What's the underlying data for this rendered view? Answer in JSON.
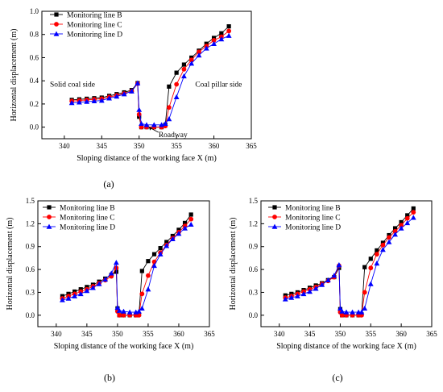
{
  "chart_data": [
    {
      "type": "line",
      "panel_label": "(a)",
      "xlabel": "Sloping distance of the working face X (m)",
      "ylabel": "Horizontal displacement (m)",
      "xlim": [
        337,
        365
      ],
      "ylim": [
        -0.1,
        1.0
      ],
      "xticks": [
        340,
        345,
        350,
        355,
        360,
        365
      ],
      "yticks": [
        0.0,
        0.2,
        0.4,
        0.6,
        0.8,
        1.0
      ],
      "ytick_labels": [
        "0.0",
        "0.2",
        "0.4",
        "0.6",
        "0.8",
        "1.0"
      ],
      "legend_position": "top-left",
      "annotations": [
        {
          "text": "Solid coal side"
        },
        {
          "text": "Coal pillar side"
        },
        {
          "text": "Roadway"
        }
      ],
      "x": [
        341,
        342,
        343,
        344,
        345,
        346,
        347,
        348,
        349,
        349.8,
        350,
        350.3,
        351,
        352,
        353,
        353.5,
        354,
        355,
        356,
        357,
        358,
        359,
        360,
        361,
        362
      ],
      "series": [
        {
          "name": "Monitoring line B",
          "marker": "square",
          "color": "#000000",
          "values": [
            0.235,
            0.24,
            0.245,
            0.25,
            0.255,
            0.27,
            0.285,
            0.3,
            0.32,
            0.38,
            0.09,
            0.0,
            0.0,
            0.0,
            0.0,
            0.02,
            0.35,
            0.47,
            0.54,
            0.6,
            0.66,
            0.72,
            0.77,
            0.81,
            0.87
          ]
        },
        {
          "name": "Monitoring line C",
          "marker": "circle",
          "color": "#ff0000",
          "values": [
            0.225,
            0.23,
            0.235,
            0.24,
            0.245,
            0.26,
            0.275,
            0.29,
            0.31,
            0.375,
            0.11,
            0.0,
            0.0,
            0.0,
            0.0,
            0.01,
            0.17,
            0.37,
            0.5,
            0.58,
            0.65,
            0.7,
            0.75,
            0.78,
            0.83
          ]
        },
        {
          "name": "Monitoring line D",
          "marker": "triangle",
          "color": "#0000ff",
          "values": [
            0.21,
            0.215,
            0.22,
            0.225,
            0.23,
            0.25,
            0.265,
            0.285,
            0.31,
            0.38,
            0.15,
            0.03,
            0.02,
            0.02,
            0.02,
            0.03,
            0.07,
            0.26,
            0.44,
            0.55,
            0.62,
            0.68,
            0.72,
            0.76,
            0.79
          ]
        }
      ]
    },
    {
      "type": "line",
      "panel_label": "(b)",
      "xlabel": "Sloping distance of the working face X (m)",
      "ylabel": "Horizontal displacement (m)",
      "xlim": [
        337,
        365
      ],
      "ylim": [
        -0.15,
        1.5
      ],
      "xticks": [
        340,
        345,
        350,
        355,
        360,
        365
      ],
      "yticks": [
        0.0,
        0.3,
        0.6,
        0.9,
        1.2,
        1.5
      ],
      "ytick_labels": [
        "0.0",
        "0.3",
        "0.6",
        "0.9",
        "1.2",
        "1.5"
      ],
      "legend_position": "top-left",
      "x": [
        341,
        342,
        343,
        344,
        345,
        346,
        347,
        348,
        349,
        349.8,
        350,
        350.3,
        351,
        352,
        353,
        353.5,
        354,
        355,
        356,
        357,
        358,
        359,
        360,
        361,
        362
      ],
      "series": [
        {
          "name": "Monitoring line B",
          "marker": "square",
          "color": "#000000",
          "values": [
            0.25,
            0.28,
            0.31,
            0.34,
            0.37,
            0.4,
            0.44,
            0.48,
            0.53,
            0.57,
            0.09,
            0.0,
            0.0,
            0.0,
            0.0,
            0.01,
            0.58,
            0.71,
            0.8,
            0.88,
            0.96,
            1.04,
            1.12,
            1.21,
            1.32
          ]
        },
        {
          "name": "Monitoring line C",
          "marker": "circle",
          "color": "#ff0000",
          "values": [
            0.22,
            0.25,
            0.28,
            0.31,
            0.34,
            0.38,
            0.42,
            0.46,
            0.51,
            0.62,
            0.05,
            0.0,
            0.0,
            0.0,
            0.0,
            0.0,
            0.28,
            0.52,
            0.7,
            0.82,
            0.92,
            1.01,
            1.09,
            1.17,
            1.26
          ]
        },
        {
          "name": "Monitoring line D",
          "marker": "triangle",
          "color": "#0000ff",
          "values": [
            0.2,
            0.22,
            0.25,
            0.28,
            0.32,
            0.36,
            0.41,
            0.47,
            0.55,
            0.69,
            0.1,
            0.06,
            0.05,
            0.04,
            0.04,
            0.05,
            0.09,
            0.34,
            0.65,
            0.8,
            0.91,
            1.0,
            1.07,
            1.14,
            1.19
          ]
        }
      ]
    },
    {
      "type": "line",
      "panel_label": "(c)",
      "xlabel": "Sloping distance of the working face X (m)",
      "ylabel": "Horizontal displacement (m)",
      "xlim": [
        337,
        365
      ],
      "ylim": [
        -0.15,
        1.5
      ],
      "xticks": [
        340,
        345,
        350,
        355,
        360,
        365
      ],
      "yticks": [
        0.0,
        0.3,
        0.6,
        0.9,
        1.2,
        1.5
      ],
      "ytick_labels": [
        "0.0",
        "0.3",
        "0.6",
        "0.9",
        "1.2",
        "1.5"
      ],
      "legend_position": "top-left",
      "x": [
        341,
        342,
        343,
        344,
        345,
        346,
        347,
        348,
        349,
        349.8,
        350,
        350.3,
        351,
        352,
        353,
        353.5,
        354,
        355,
        356,
        357,
        358,
        359,
        360,
        361,
        362
      ],
      "series": [
        {
          "name": "Monitoring line B",
          "marker": "square",
          "color": "#000000",
          "values": [
            0.26,
            0.28,
            0.3,
            0.33,
            0.36,
            0.39,
            0.42,
            0.46,
            0.5,
            0.62,
            0.08,
            0.0,
            0.0,
            0.0,
            0.0,
            0.01,
            0.63,
            0.74,
            0.85,
            0.95,
            1.05,
            1.14,
            1.22,
            1.31,
            1.4
          ]
        },
        {
          "name": "Monitoring line C",
          "marker": "circle",
          "color": "#ff0000",
          "values": [
            0.23,
            0.25,
            0.28,
            0.31,
            0.34,
            0.37,
            0.41,
            0.45,
            0.5,
            0.65,
            0.04,
            0.0,
            0.0,
            0.0,
            0.0,
            0.0,
            0.3,
            0.62,
            0.8,
            0.92,
            1.02,
            1.1,
            1.18,
            1.27,
            1.35
          ]
        },
        {
          "name": "Monitoring line D",
          "marker": "triangle",
          "color": "#0000ff",
          "values": [
            0.21,
            0.23,
            0.25,
            0.28,
            0.31,
            0.35,
            0.4,
            0.46,
            0.52,
            0.66,
            0.09,
            0.05,
            0.04,
            0.04,
            0.04,
            0.04,
            0.09,
            0.41,
            0.68,
            0.86,
            0.96,
            1.06,
            1.14,
            1.21,
            1.28
          ]
        }
      ]
    }
  ]
}
